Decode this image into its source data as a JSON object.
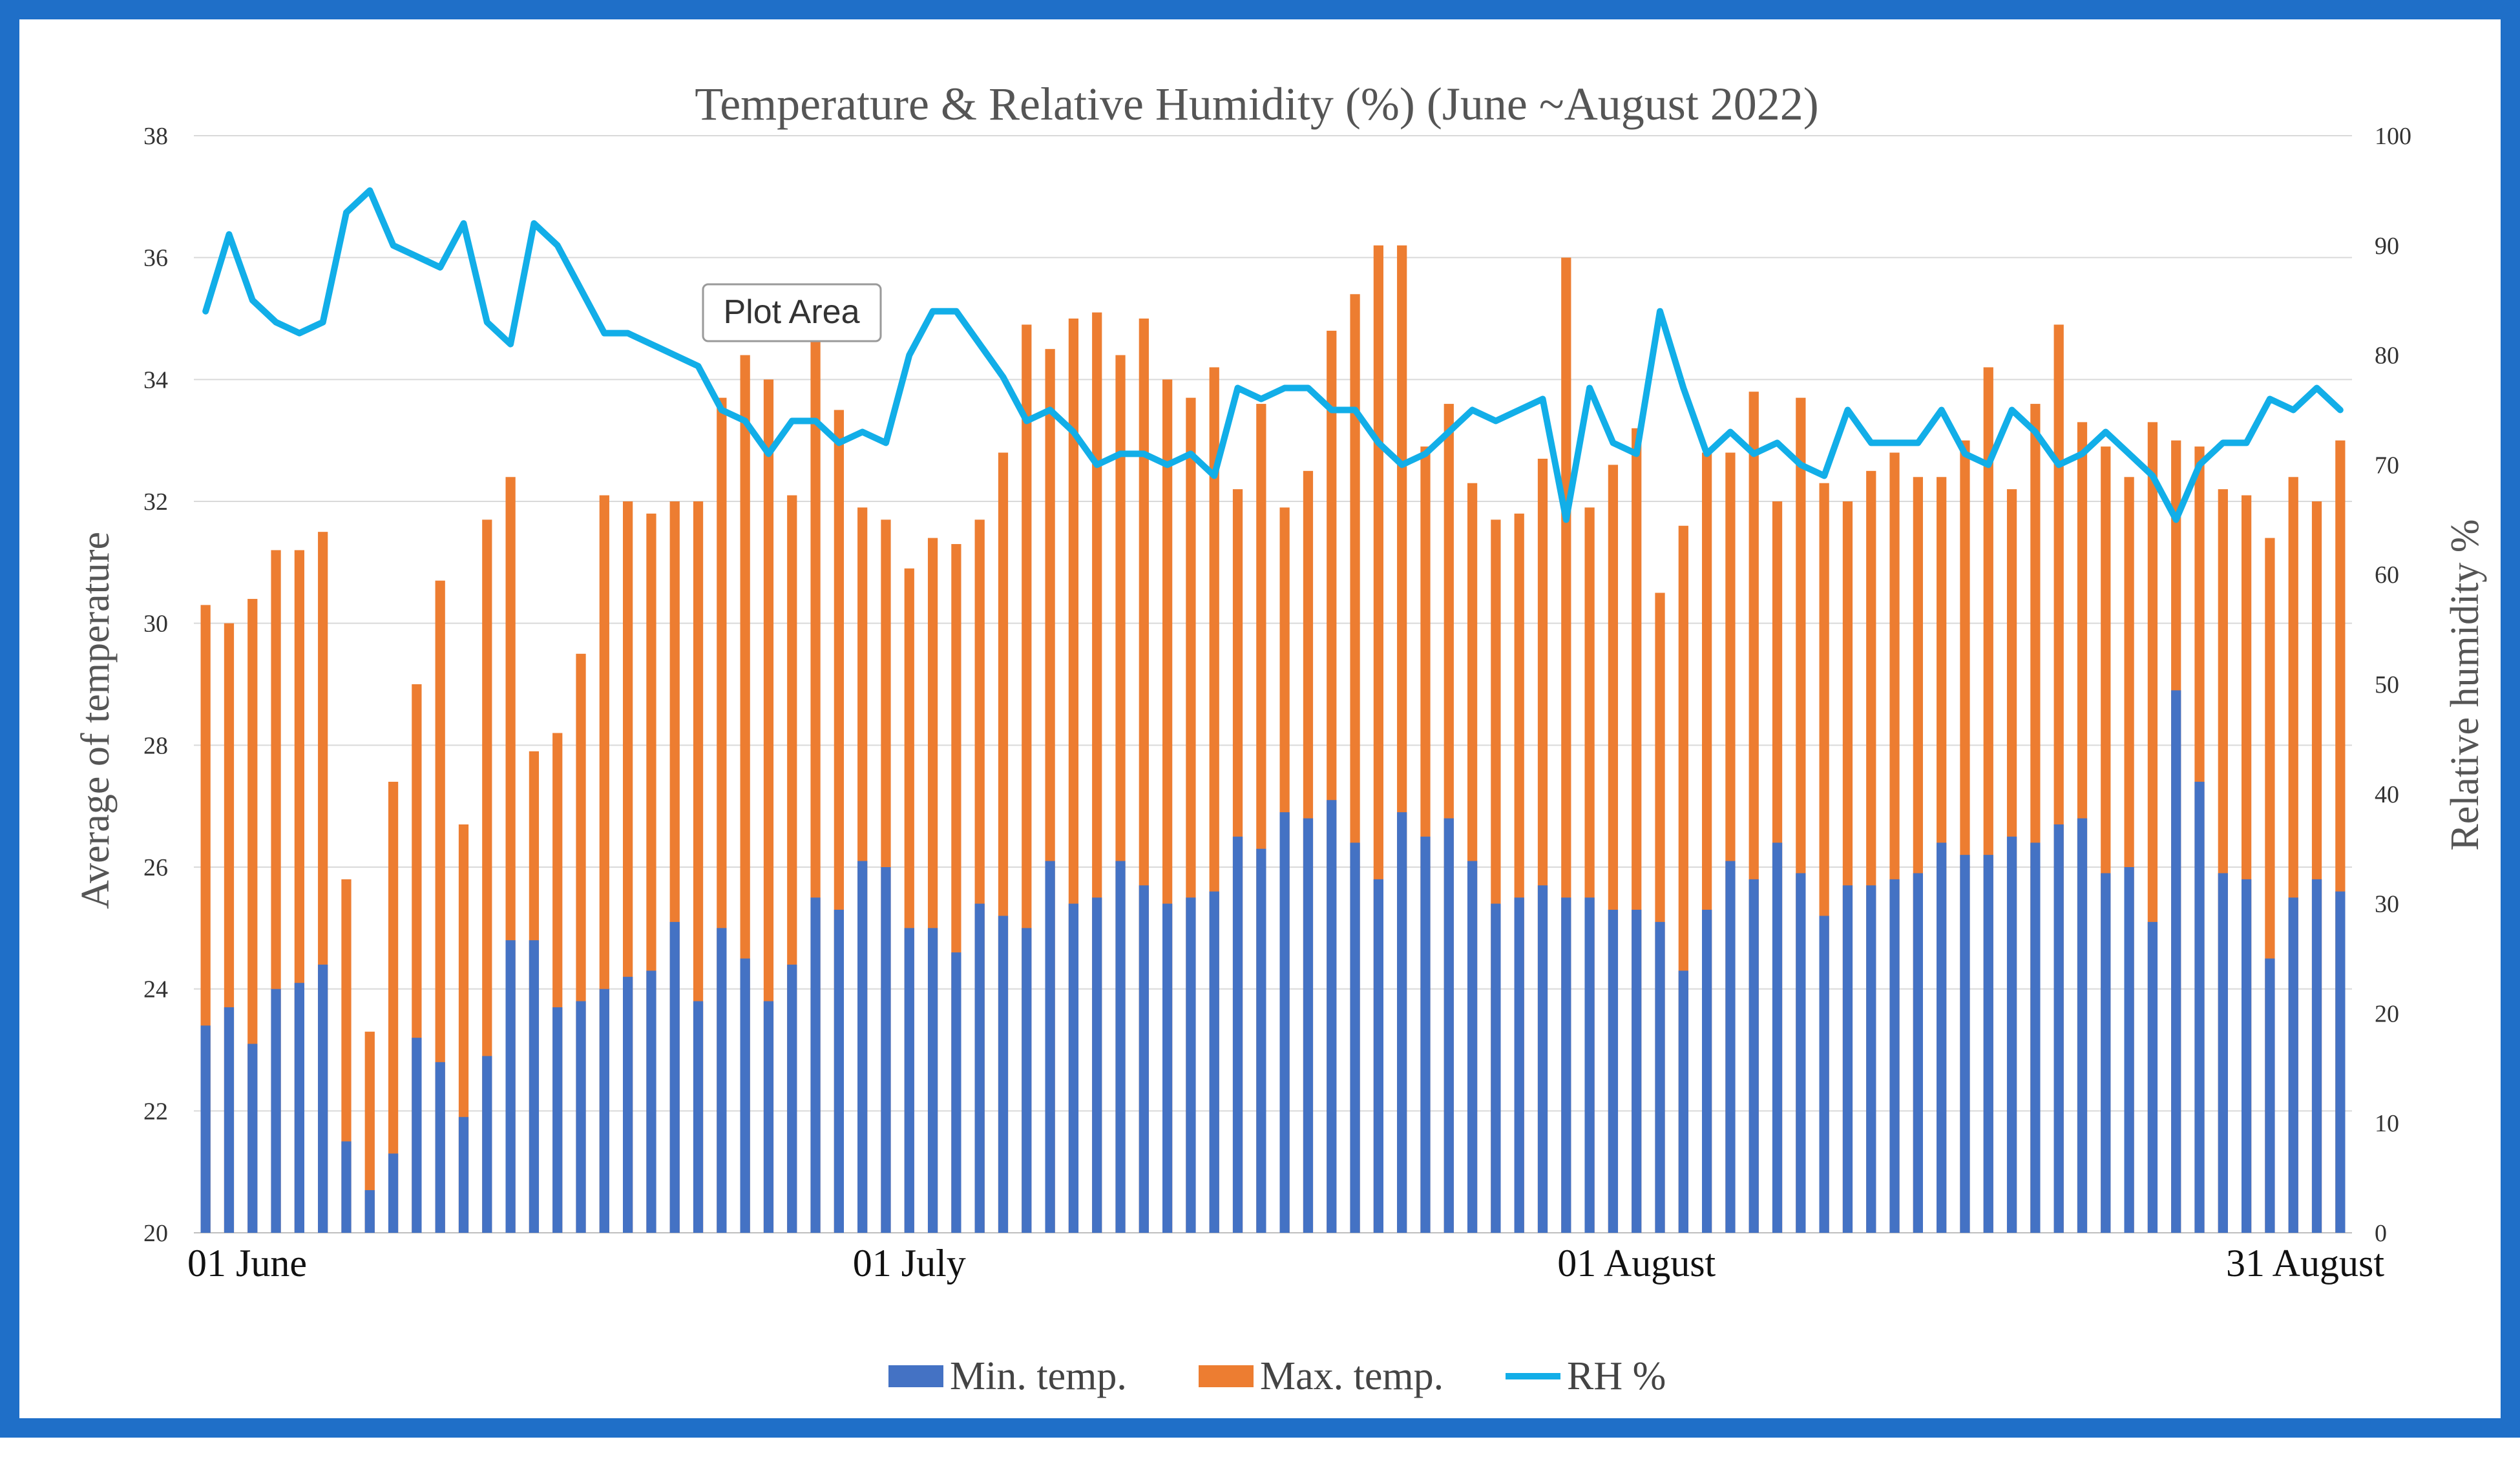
{
  "chart_data": {
    "type": "bar+line",
    "title": "Temperature & Relative Humidity (%) (June ~August 2022)",
    "ylabel_left": "Average of temperature",
    "ylabel_right": "Relative humidity %",
    "ylim_left": [
      20,
      38
    ],
    "ylim_right": [
      0,
      100
    ],
    "yticks_left": [
      "20",
      "22",
      "24",
      "26",
      "28",
      "30",
      "32",
      "34",
      "36",
      "38"
    ],
    "yticks_right": [
      "0",
      "10",
      "20",
      "30",
      "40",
      "50",
      "60",
      "70",
      "80",
      "90",
      "100"
    ],
    "date_labels": [
      {
        "text": "01 June",
        "index": 0
      },
      {
        "text": "01 July",
        "index": 30
      },
      {
        "text": "01 August",
        "index": 61
      },
      {
        "text": "31 August",
        "index": 91
      }
    ],
    "tooltip": "Plot Area",
    "series": [
      {
        "name": "Min. temp.",
        "type": "bar",
        "color": "#4472c4",
        "values": [
          23.4,
          23.7,
          23.1,
          24.0,
          24.1,
          24.4,
          21.5,
          20.7,
          21.3,
          23.2,
          22.8,
          21.9,
          22.9,
          24.8,
          24.8,
          23.7,
          23.8,
          24.0,
          24.2,
          24.3,
          25.1,
          23.8,
          25.0,
          24.5,
          23.8,
          24.4,
          25.5,
          25.3,
          26.1,
          26.0,
          25.0,
          25.0,
          24.6,
          25.4,
          25.2,
          25.0,
          26.1,
          25.4,
          25.5,
          26.1,
          25.7,
          25.4,
          25.5,
          25.6,
          26.5,
          26.3,
          26.9,
          26.8,
          27.1,
          26.4,
          25.8,
          26.9,
          26.5,
          26.8,
          26.1,
          25.4,
          25.5,
          25.7,
          25.5,
          25.5,
          25.3,
          25.3,
          25.1,
          24.3,
          25.3,
          26.1,
          25.8,
          26.4,
          25.9,
          25.2,
          25.7,
          25.7,
          25.8,
          25.9,
          26.4,
          26.2,
          26.2,
          26.5,
          26.4,
          26.7,
          26.8,
          25.9,
          26.0,
          25.1,
          28.9,
          27.4,
          25.9,
          25.8,
          24.5,
          25.5,
          25.8,
          25.6
        ]
      },
      {
        "name": "Max. temp.",
        "type": "bar",
        "color": "#ed7d31",
        "values": [
          30.3,
          30.0,
          30.4,
          31.2,
          31.2,
          31.5,
          25.8,
          23.3,
          27.4,
          29.0,
          30.7,
          26.7,
          31.7,
          32.4,
          27.9,
          28.2,
          29.5,
          32.1,
          32.0,
          31.8,
          32.0,
          32.0,
          33.7,
          34.4,
          34.0,
          32.1,
          34.8,
          33.5,
          31.9,
          31.7,
          30.9,
          31.4,
          31.3,
          31.7,
          32.8,
          34.9,
          34.5,
          35.0,
          35.1,
          34.4,
          35.0,
          34.0,
          33.7,
          34.2,
          32.2,
          33.6,
          31.9,
          32.5,
          34.8,
          35.4,
          36.2,
          36.2,
          32.9,
          33.6,
          32.3,
          31.7,
          31.8,
          32.7,
          36.0,
          31.9,
          32.6,
          33.2,
          30.5,
          31.6,
          32.8,
          32.8,
          33.8,
          32.0,
          33.7,
          32.3,
          32.0,
          32.5,
          32.8,
          32.4,
          32.4,
          33.0,
          34.2,
          32.2,
          33.6,
          34.9,
          33.3,
          32.9,
          32.4,
          33.3,
          33.0,
          32.9,
          32.2,
          32.1,
          31.4,
          32.4,
          32.0,
          33.0
        ]
      },
      {
        "name": "RH %",
        "type": "line",
        "axis": "right",
        "color": "#12aee8",
        "values": [
          84,
          91,
          85,
          83,
          82,
          83,
          93,
          95,
          90,
          89,
          88,
          92,
          83,
          81,
          92,
          90,
          86,
          82,
          82,
          81,
          80,
          79,
          75,
          74,
          71,
          74,
          74,
          72,
          73,
          72,
          80,
          84,
          84,
          81,
          78,
          74,
          75,
          73,
          70,
          71,
          71,
          70,
          71,
          69,
          77,
          76,
          77,
          77,
          75,
          75,
          72,
          70,
          71,
          73,
          75,
          74,
          75,
          76,
          65,
          77,
          72,
          71,
          84,
          77,
          71,
          73,
          71,
          72,
          70,
          69,
          75,
          72,
          72,
          72,
          75,
          71,
          70,
          75,
          73,
          70,
          71,
          73,
          71,
          69,
          65,
          70,
          72,
          72,
          76,
          75,
          77,
          75
        ]
      }
    ]
  }
}
